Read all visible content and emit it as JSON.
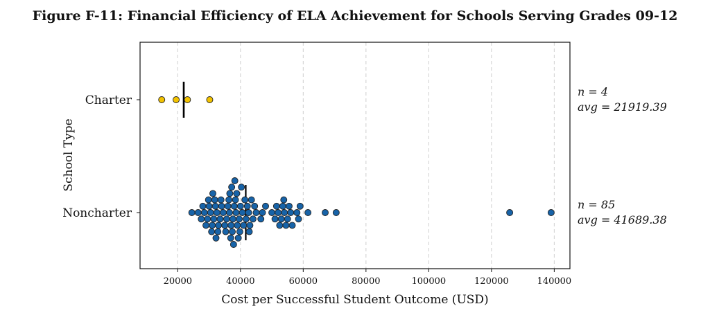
{
  "chart_data": {
    "type": "scatter",
    "subtype": "beeswarm",
    "title": "Figure F-11: Financial Efficiency of ELA Achievement for Schools Serving Grades 09-12",
    "xlabel": "Cost per Successful Student Outcome (USD)",
    "ylabel": "School Type",
    "xlim": [
      8000,
      145000
    ],
    "xticks": [
      20000,
      40000,
      60000,
      80000,
      100000,
      120000,
      140000
    ],
    "xtick_labels": [
      "20000",
      "40000",
      "60000",
      "80000",
      "100000",
      "120000",
      "140000"
    ],
    "grid": "vertical dashed",
    "categories": [
      "Charter",
      "Noncharter"
    ],
    "colors": {
      "Charter": "#f2c200",
      "Noncharter": "#1763a8",
      "edge": "#222222",
      "mean_line": "#000000"
    },
    "series": [
      {
        "name": "Charter",
        "n_label": "n = 4",
        "avg_label": "avg = 21919.39",
        "mean": 21919.39,
        "values": [
          14900,
          19500,
          23100,
          30200
        ]
      },
      {
        "name": "Noncharter",
        "n_label": "n = 85",
        "avg_label": "avg = 41689.38",
        "mean": 41689.38,
        "values": [
          24500,
          26500,
          27500,
          28000,
          28500,
          29000,
          29500,
          30000,
          30500,
          31000,
          31200,
          31500,
          31800,
          32000,
          32200,
          32500,
          32800,
          33000,
          33500,
          34000,
          34500,
          35000,
          35300,
          35600,
          36000,
          36300,
          36600,
          36900,
          37200,
          37400,
          37600,
          37800,
          38000,
          38200,
          38400,
          38600,
          38800,
          39000,
          39300,
          39600,
          40000,
          40300,
          40600,
          41000,
          41400,
          41800,
          42200,
          42600,
          43000,
          43500,
          44000,
          44500,
          45000,
          46500,
          47000,
          48000,
          50000,
          51000,
          51500,
          52000,
          52500,
          53000,
          53500,
          54000,
          54500,
          55000,
          55500,
          56000,
          56500,
          58000,
          58500,
          59000,
          61500,
          67000,
          70500,
          125800,
          139000,
          36500,
          37000,
          33800,
          29800,
          30800,
          39800,
          42800,
          53800
        ]
      }
    ]
  }
}
